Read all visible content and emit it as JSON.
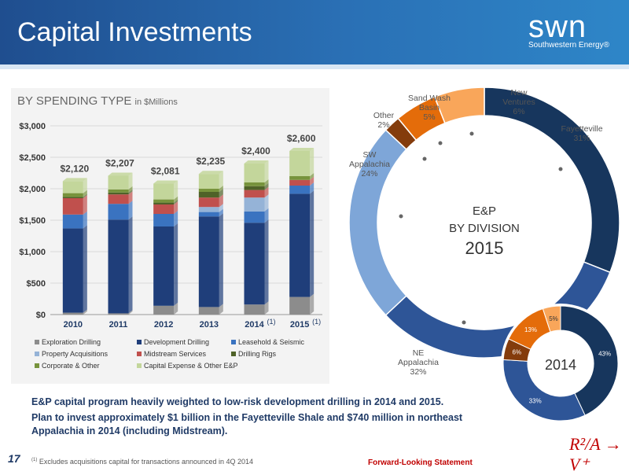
{
  "header": {
    "title": "Capital Investments",
    "logo_word": "swn",
    "logo_sub": "Southwestern Energy®"
  },
  "chart_title": {
    "main": "BY SPENDING TYPE",
    "unit": "in $Millions"
  },
  "bullets": [
    "E&P capital program heavily weighted to low-risk development drilling in 2014 and 2015.",
    "Plan to invest approximately $1 billion in the Fayetteville Shale and $740 million in northeast Appalachia in 2014 (including Midstream)."
  ],
  "footer": {
    "page_number": "17",
    "footnote_mark": "(1)",
    "footnote": "Excludes acquisitions capital for transactions announced in 4Q 2014",
    "forward_looking": "Forward-Looking Statement",
    "rav_logo": "R²/A → V⁺"
  },
  "colors": {
    "exploration": "#8c8c8c",
    "development": "#1f3e7a",
    "leasehold": "#3a73c0",
    "property": "#95b3d7",
    "midstream": "#c0504d",
    "rigs": "#4f6228",
    "corporate": "#77933c",
    "capex_other": "#c3d69b",
    "fayetteville": "#17365d",
    "ne_appalachia": "#2e5597",
    "sw_appalachia": "#7ea6d8",
    "other": "#843c0c",
    "sand_wash": "#e46c0a",
    "new_ventures": "#f9a65a"
  },
  "chart_data": [
    {
      "type": "bar",
      "stacked": true,
      "title": "BY SPENDING TYPE in $Millions",
      "categories": [
        "2010",
        "2011",
        "2012",
        "2013",
        "2014",
        "2015"
      ],
      "category_superscripts": [
        "",
        "",
        "",
        "",
        "(1)",
        "(1)"
      ],
      "ylim": [
        0,
        3000
      ],
      "yticks": [
        0,
        500,
        1000,
        1500,
        2000,
        2500,
        3000
      ],
      "ytick_labels": [
        "$0",
        "$500",
        "$1,000",
        "$1,500",
        "$2,000",
        "$2,500",
        "$3,000"
      ],
      "totals": [
        2120,
        2207,
        2081,
        2235,
        2400,
        2600
      ],
      "total_labels": [
        "$2,120",
        "$2,207",
        "$2,081",
        "$2,235",
        "$2,400",
        "$2,600"
      ],
      "legend_position": "bottom",
      "series": [
        {
          "name": "Exploration Drilling",
          "color_key": "exploration",
          "values": [
            30,
            20,
            140,
            120,
            160,
            280
          ]
        },
        {
          "name": "Development Drilling",
          "color_key": "development",
          "values": [
            1340,
            1490,
            1260,
            1440,
            1300,
            1640
          ]
        },
        {
          "name": "Leasehold & Seismic",
          "color_key": "leasehold",
          "values": [
            220,
            250,
            200,
            70,
            180,
            130
          ]
        },
        {
          "name": "Property Acquisitions",
          "color_key": "property",
          "values": [
            0,
            0,
            0,
            80,
            220,
            0
          ]
        },
        {
          "name": "Midstream Services",
          "color_key": "midstream",
          "values": [
            260,
            150,
            150,
            150,
            120,
            90
          ]
        },
        {
          "name": "Drilling Rigs",
          "color_key": "rigs",
          "values": [
            20,
            30,
            30,
            90,
            60,
            0
          ]
        },
        {
          "name": "Corporate & Other",
          "color_key": "corporate",
          "values": [
            60,
            50,
            50,
            50,
            60,
            60
          ]
        },
        {
          "name": "Capital Expense & Other E&P",
          "color_key": "capex_other",
          "values": [
            190,
            217,
            251,
            235,
            300,
            400
          ]
        }
      ]
    },
    {
      "type": "pie",
      "donut": true,
      "center_title": "E&P",
      "center_subtitle": "BY DIVISION",
      "center_year": "2015",
      "slices": [
        {
          "name": "Fayetteville",
          "value": 31,
          "label": "31%",
          "color_key": "fayetteville"
        },
        {
          "name": "NE Appalachia",
          "value": 32,
          "label": "32%",
          "color_key": "ne_appalachia"
        },
        {
          "name": "SW Appalachia",
          "value": 24,
          "label": "24%",
          "color_key": "sw_appalachia"
        },
        {
          "name": "Other",
          "value": 2,
          "label": "2%",
          "color_key": "other"
        },
        {
          "name": "Sand Wash Basin",
          "value": 5,
          "label": "5%",
          "color_key": "sand_wash"
        },
        {
          "name": "New Ventures",
          "value": 6,
          "label": "6%",
          "color_key": "new_ventures"
        }
      ]
    },
    {
      "type": "pie",
      "donut": true,
      "center_year": "2014",
      "slices": [
        {
          "name": "Fayetteville",
          "value": 43,
          "label": "43%",
          "color_key": "fayetteville"
        },
        {
          "name": "NE Appalachia",
          "value": 33,
          "label": "33%",
          "color_key": "ne_appalachia"
        },
        {
          "name": "Other",
          "value": 6,
          "label": "6%",
          "color_key": "other"
        },
        {
          "name": "Sand Wash Basin",
          "value": 13,
          "label": "13%",
          "color_key": "sand_wash"
        },
        {
          "name": "New Ventures",
          "value": 5,
          "label": "5%",
          "color_key": "new_ventures"
        }
      ]
    }
  ]
}
